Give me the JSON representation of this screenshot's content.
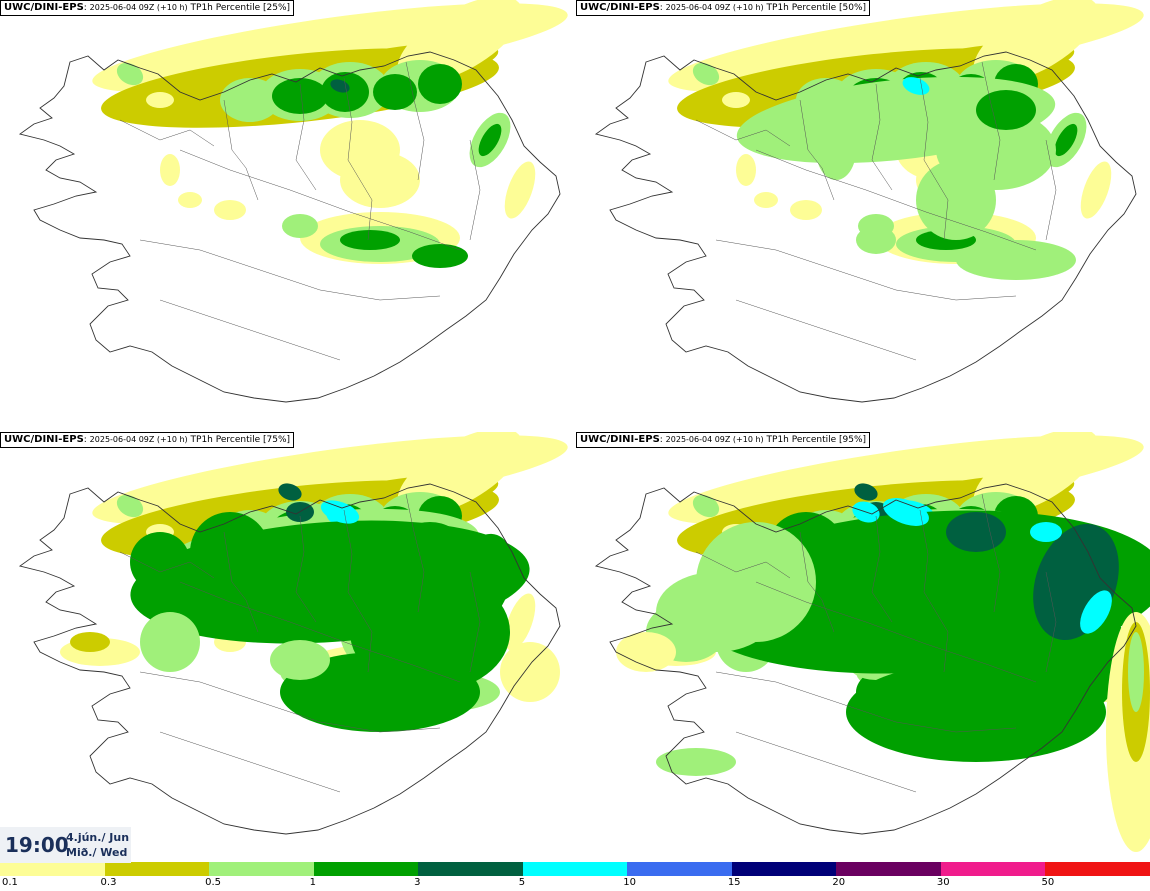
{
  "panels": [
    {
      "source": "UWC/DINI-EPS",
      "run": "2025-06-04 09Z (+10 h)",
      "field": "TP1h Percentile [25%]"
    },
    {
      "source": "UWC/DINI-EPS",
      "run": "2025-06-04 09Z (+10 h)",
      "field": "TP1h Percentile [50%]"
    },
    {
      "source": "UWC/DINI-EPS",
      "run": "2025-06-04 09Z (+10 h)",
      "field": "TP1h Percentile [75%]"
    },
    {
      "source": "UWC/DINI-EPS",
      "run": "2025-06-04 09Z (+10 h)",
      "field": "TP1h Percentile [95%]"
    }
  ],
  "valid_time": {
    "clock": "19:00",
    "date_line1": "4.jún./ Jun",
    "date_line2": "Mið./ Wed"
  },
  "legend": {
    "colors": [
      "#fdfd96",
      "#cccc00",
      "#a0f07a",
      "#00a000",
      "#006040",
      "#00ffff",
      "#3a6cf0",
      "#000078",
      "#6a0060",
      "#f01c8c",
      "#f01414"
    ],
    "labels": [
      "0.1",
      "0.3",
      "0.5",
      "1",
      "3",
      "5",
      "10",
      "15",
      "20",
      "30",
      "50"
    ]
  }
}
